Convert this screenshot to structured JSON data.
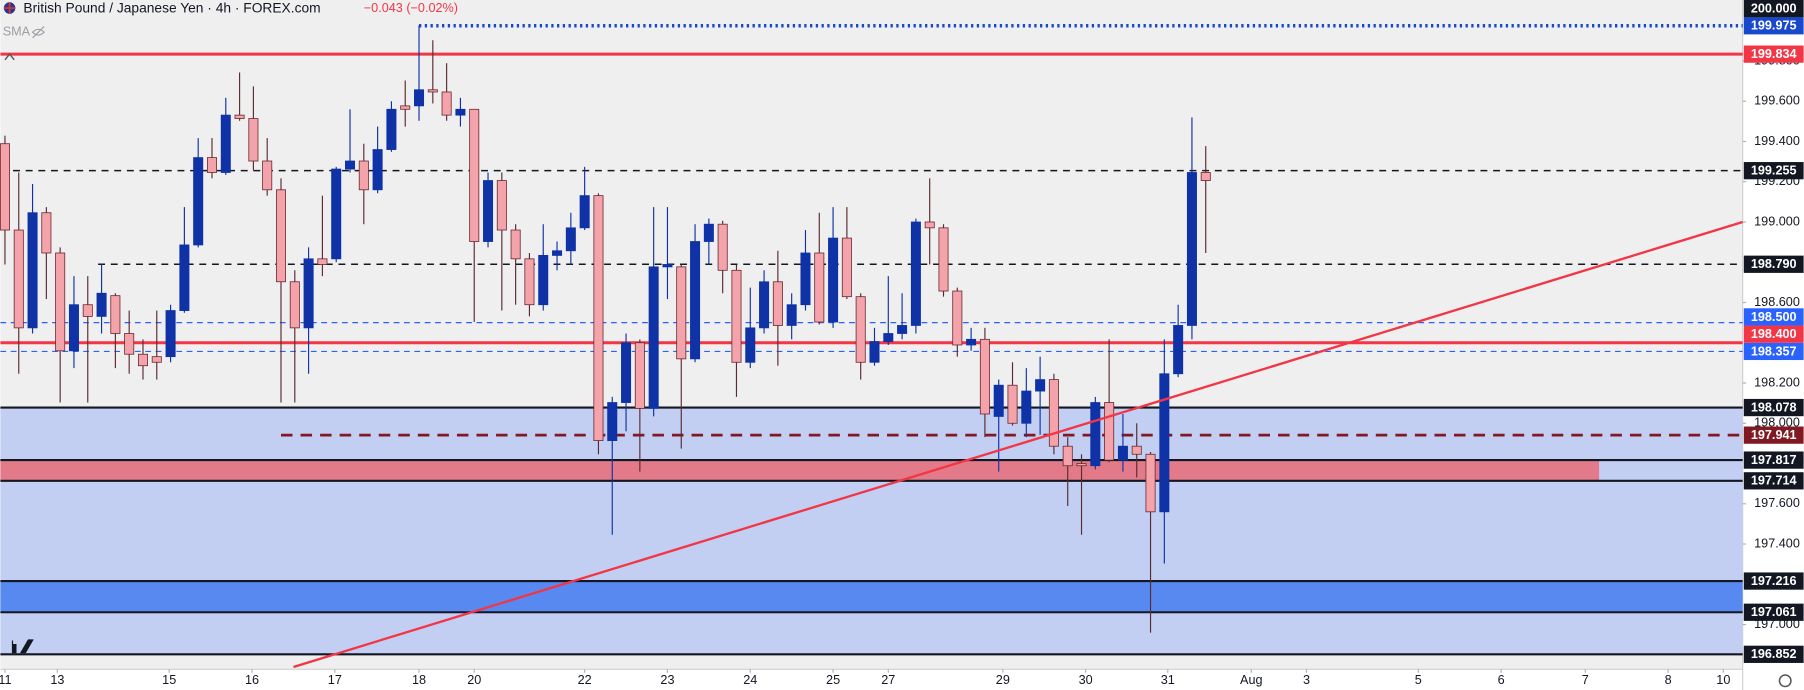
{
  "chart_data": {
    "type": "candlestick",
    "title": "British Pound / Japanese Yen · 4h · FOREX.com",
    "change": "−0.043 (−0.02%)",
    "indicator": "SMA",
    "up_color": "#0f32a6",
    "down_color": "#f4a3aa",
    "ylim": [
      196.789,
      200.103
    ],
    "xlim": [
      -0.33,
      125.9
    ],
    "grid": false,
    "yticks": [
      {
        "value": 197.0,
        "label": "197.000"
      },
      {
        "value": 197.4,
        "label": "197.400"
      },
      {
        "value": 197.6,
        "label": "197.600"
      },
      {
        "value": 198.0,
        "label": "198.000"
      },
      {
        "value": 198.2,
        "label": "198.200"
      },
      {
        "value": 198.6,
        "label": "198.600"
      },
      {
        "value": 199.0,
        "label": "199.000"
      },
      {
        "value": 199.2,
        "label": "199.200"
      },
      {
        "value": 199.4,
        "label": "199.400"
      },
      {
        "value": 199.6,
        "label": "199.600"
      },
      {
        "value": 199.8,
        "label": "199.800"
      }
    ],
    "xticks": [
      {
        "value": 0,
        "label": "11"
      },
      {
        "value": 3.8,
        "label": "13"
      },
      {
        "value": 11.9,
        "label": "15"
      },
      {
        "value": 17.9,
        "label": "16"
      },
      {
        "value": 23.9,
        "label": "17"
      },
      {
        "value": 30,
        "label": "18"
      },
      {
        "value": 34,
        "label": "20"
      },
      {
        "value": 42,
        "label": "22"
      },
      {
        "value": 48,
        "label": "23"
      },
      {
        "value": 54,
        "label": "24"
      },
      {
        "value": 60,
        "label": "25"
      },
      {
        "value": 64,
        "label": "27"
      },
      {
        "value": 72.3,
        "label": "29"
      },
      {
        "value": 78.3,
        "label": "30"
      },
      {
        "value": 84.25,
        "label": "31"
      },
      {
        "value": 90.3,
        "label": "Aug"
      },
      {
        "value": 94.3,
        "label": "3"
      },
      {
        "value": 102.4,
        "label": "5"
      },
      {
        "value": 108.4,
        "label": "6"
      },
      {
        "value": 114.5,
        "label": "7"
      },
      {
        "value": 120.5,
        "label": "8"
      },
      {
        "value": 124.5,
        "label": "10"
      }
    ],
    "open": [
      199.389,
      198.96,
      198.474,
      199.046,
      198.846,
      198.36,
      198.589,
      198.531,
      198.634,
      198.446,
      198.343,
      198.331,
      198.331,
      198.56,
      198.886,
      199.32,
      199.246,
      199.531,
      199.514,
      199.303,
      199.16,
      198.703,
      198.474,
      198.817,
      198.817,
      199.263,
      199.303,
      199.16,
      199.36,
      199.577,
      199.577,
      199.657,
      199.646,
      199.531,
      199.56,
      198.903,
      199.206,
      198.96,
      198.817,
      198.589,
      198.834,
      198.857,
      198.971,
      199.131,
      197.914,
      198.103,
      198.4,
      198.074,
      198.777,
      198.777,
      198.32,
      198.903,
      198.989,
      198.76,
      198.303,
      198.474,
      198.703,
      198.486,
      198.589,
      198.846,
      198.503,
      198.92,
      198.629,
      198.303,
      198.406,
      198.446,
      198.486,
      199.0,
      198.971,
      198.657,
      198.389,
      198.417,
      198.034,
      198.189,
      198.0,
      198.16,
      198.217,
      197.886,
      197.8,
      197.789,
      198.103,
      197.817,
      197.886,
      197.846,
      197.56,
      198.246,
      198.486,
      199.246
    ],
    "high": [
      199.429,
      199.246,
      199.189,
      199.074,
      198.874,
      198.731,
      198.731,
      198.789,
      198.646,
      198.56,
      198.417,
      198.56,
      198.589,
      199.074,
      199.417,
      199.417,
      199.617,
      199.743,
      199.674,
      199.417,
      199.217,
      198.76,
      198.874,
      199.131,
      199.274,
      199.56,
      199.389,
      199.474,
      199.6,
      199.703,
      199.977,
      199.903,
      199.789,
      199.617,
      199.56,
      199.246,
      199.246,
      198.989,
      198.846,
      198.989,
      198.903,
      199.046,
      199.274,
      199.143,
      198.131,
      198.446,
      198.417,
      199.074,
      199.074,
      198.789,
      198.989,
      199.017,
      199.006,
      198.789,
      198.674,
      198.76,
      198.857,
      198.646,
      198.96,
      199.046,
      199.074,
      199.074,
      198.646,
      198.474,
      198.731,
      198.646,
      199.017,
      199.217,
      198.989,
      198.674,
      198.474,
      198.474,
      198.217,
      198.303,
      198.274,
      198.331,
      198.246,
      197.931,
      197.846,
      198.131,
      198.417,
      198.046,
      198.0,
      197.857,
      198.417,
      198.589,
      199.52,
      199.377
    ],
    "low": [
      198.789,
      198.246,
      198.446,
      198.617,
      198.103,
      198.274,
      198.103,
      198.446,
      198.274,
      198.246,
      198.217,
      198.217,
      198.303,
      198.549,
      198.874,
      199.217,
      199.234,
      199.503,
      199.257,
      199.131,
      198.103,
      198.103,
      198.246,
      198.731,
      198.8,
      199.246,
      198.989,
      199.143,
      199.349,
      199.474,
      199.503,
      199.589,
      199.503,
      199.474,
      198.503,
      198.874,
      198.56,
      198.589,
      198.531,
      198.56,
      198.76,
      198.789,
      198.96,
      197.846,
      197.446,
      197.96,
      197.76,
      198.034,
      198.617,
      197.874,
      198.303,
      198.789,
      198.646,
      198.131,
      198.274,
      198.446,
      198.286,
      198.417,
      198.56,
      198.491,
      198.474,
      198.617,
      198.217,
      198.286,
      198.389,
      198.417,
      198.446,
      198.789,
      198.629,
      198.331,
      198.36,
      197.931,
      197.76,
      197.989,
      197.931,
      197.943,
      197.846,
      197.589,
      197.446,
      197.771,
      197.806,
      197.76,
      197.731,
      196.96,
      197.303,
      198.229,
      198.417,
      198.846
    ],
    "close": [
      198.96,
      198.474,
      199.046,
      198.846,
      198.36,
      198.589,
      198.531,
      198.646,
      198.446,
      198.343,
      198.286,
      198.303,
      198.56,
      198.886,
      199.32,
      199.246,
      199.531,
      199.514,
      199.303,
      199.16,
      198.703,
      198.474,
      198.817,
      198.789,
      199.263,
      199.303,
      199.16,
      199.36,
      199.56,
      199.56,
      199.657,
      199.646,
      199.531,
      199.56,
      198.903,
      199.206,
      198.96,
      198.817,
      198.589,
      198.834,
      198.857,
      198.971,
      199.131,
      197.914,
      198.103,
      198.4,
      198.074,
      198.777,
      198.789,
      198.32,
      198.903,
      198.989,
      198.76,
      198.303,
      198.474,
      198.703,
      198.486,
      198.589,
      198.846,
      198.503,
      198.92,
      198.629,
      198.303,
      198.406,
      198.446,
      198.486,
      199.0,
      198.971,
      198.657,
      198.389,
      198.417,
      198.046,
      198.189,
      198.0,
      198.16,
      198.217,
      197.886,
      197.789,
      197.789,
      198.103,
      197.817,
      197.886,
      197.846,
      197.56,
      198.246,
      198.486,
      199.246,
      199.206
    ],
    "zones": [
      {
        "from": 198.078,
        "to": 196.852,
        "color": "#c2cef2"
      },
      {
        "from": 197.817,
        "to": 197.714,
        "color": "#e27a8a",
        "x_end": 115.5
      },
      {
        "from": 197.216,
        "to": 197.061,
        "color": "#5889f0"
      }
    ],
    "trendline": {
      "x": [
        20.9,
        125.9
      ],
      "y": [
        196.789,
        199.0
      ],
      "color": "#f23645"
    },
    "levels": [
      {
        "value": 200.0,
        "label": "200.000",
        "color": "#131722",
        "style": "none"
      },
      {
        "value": 199.975,
        "label": "199.975",
        "color": "#1848cc",
        "style": "dotted",
        "x_start": 30
      },
      {
        "value": 199.834,
        "label": "199.834",
        "color": "#f23645",
        "style": "solid"
      },
      {
        "value": 199.255,
        "label": "199.255",
        "color": "#131722",
        "style": "dashed"
      },
      {
        "value": 198.79,
        "label": "198.790",
        "color": "#131722",
        "style": "dashed",
        "x_start": 6.75
      },
      {
        "value": 198.5,
        "label": "198.500",
        "color": "#2962ff",
        "style": "thin-dashed"
      },
      {
        "value": 198.4,
        "label": "198.400",
        "color": "#f23645",
        "style": "solid"
      },
      {
        "value": 198.357,
        "label": "198.357",
        "color": "#2962ff",
        "style": "thin-dashed"
      },
      {
        "value": 198.078,
        "label": "198.078",
        "color": "#131722",
        "style": "solid"
      },
      {
        "value": 197.941,
        "label": "197.941",
        "color": "#801922",
        "style": "heavy-dashed",
        "x_start": 20
      },
      {
        "value": 197.817,
        "label": "197.817",
        "color": "#131722",
        "style": "solid"
      },
      {
        "value": 197.714,
        "label": "197.714",
        "color": "#131722",
        "style": "solid"
      },
      {
        "value": 197.216,
        "label": "197.216",
        "color": "#131722",
        "style": "solid"
      },
      {
        "value": 197.061,
        "label": "197.061",
        "color": "#131722",
        "style": "solid"
      },
      {
        "value": 196.852,
        "label": "196.852",
        "color": "#131722",
        "style": "solid"
      }
    ]
  }
}
